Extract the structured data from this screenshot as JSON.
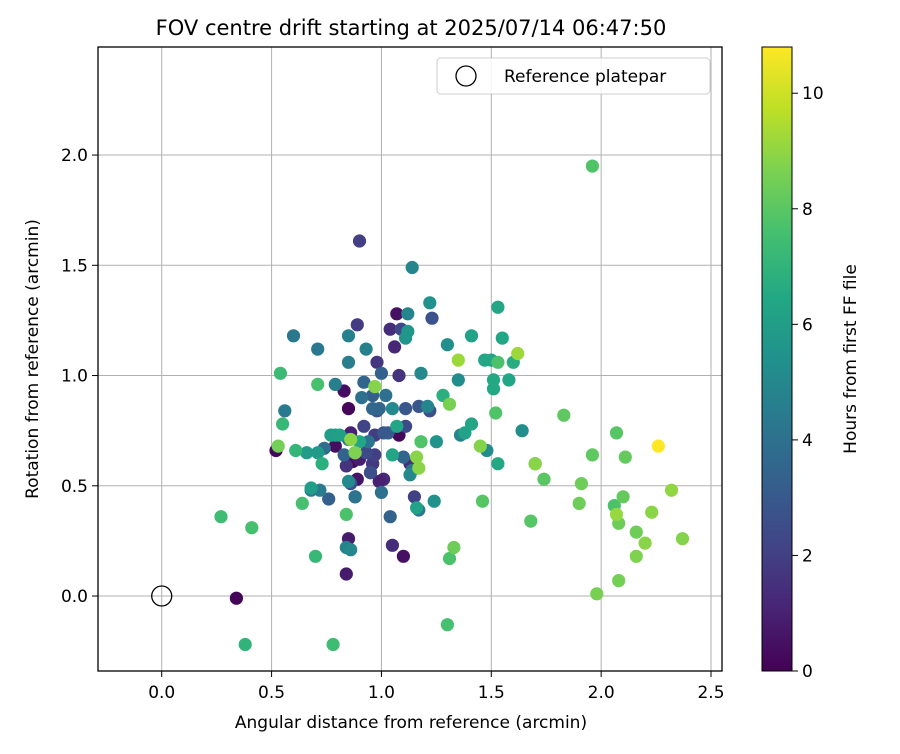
{
  "chart_data": {
    "type": "scatter",
    "title": "FOV centre drift starting at 2025/07/14 06:47:50",
    "xlabel": "Angular distance from reference (arcmin)",
    "ylabel": "Rotation from reference (arcmin)",
    "xlim": [
      -0.29,
      2.55
    ],
    "ylim": [
      -0.34,
      2.49
    ],
    "xticks": [
      0.0,
      0.5,
      1.0,
      1.5,
      2.0,
      2.5
    ],
    "xtick_labels": [
      "0.0",
      "0.5",
      "1.0",
      "1.5",
      "2.0",
      "2.5"
    ],
    "yticks": [
      0.0,
      0.5,
      1.0,
      1.5,
      2.0
    ],
    "ytick_labels": [
      "0.0",
      "0.5",
      "1.0",
      "1.5",
      "2.0"
    ],
    "grid": true,
    "legend": {
      "placement": "top-right",
      "entries": [
        {
          "label": "Reference platepar",
          "marker": "open-circle",
          "color": "#000000"
        }
      ]
    },
    "reference_point": {
      "x": 0.0,
      "y": 0.0
    },
    "colorbar": {
      "label": "Hours from first FF file",
      "colormap": "viridis",
      "range": [
        0,
        10.8
      ],
      "ticks": [
        0,
        2,
        4,
        6,
        8,
        10
      ],
      "tick_labels": [
        "0",
        "2",
        "4",
        "6",
        "8",
        "10"
      ]
    },
    "series": [
      {
        "points": [
          [
            0.34,
            -0.01,
            0.1
          ],
          [
            0.52,
            0.66,
            0.2
          ],
          [
            0.85,
            0.85,
            0.2
          ],
          [
            0.83,
            0.93,
            0.4
          ],
          [
            0.79,
            0.68,
            0.4
          ],
          [
            0.87,
            0.61,
            0.3
          ],
          [
            0.88,
            0.63,
            0.5
          ],
          [
            0.96,
            0.6,
            0.4
          ],
          [
            1.07,
            1.28,
            0.5
          ],
          [
            1.08,
            0.73,
            0.2
          ],
          [
            1.1,
            0.18,
            0.5
          ],
          [
            0.84,
            0.1,
            0.8
          ],
          [
            0.85,
            0.26,
            0.8
          ],
          [
            0.89,
            0.53,
            0.6
          ],
          [
            0.9,
            0.62,
            0.9
          ],
          [
            0.86,
            0.74,
            1.0
          ],
          [
            0.95,
            0.56,
            1.2
          ],
          [
            1.01,
            0.53,
            1.2
          ],
          [
            0.99,
            0.52,
            1.0
          ],
          [
            1.05,
            0.23,
            1.4
          ],
          [
            1.06,
            1.13,
            1.2
          ],
          [
            1.04,
            1.21,
            1.4
          ],
          [
            1.13,
            0.6,
            1.5
          ],
          [
            1.08,
            1.0,
            1.6
          ],
          [
            0.84,
            0.59,
            1.6
          ],
          [
            0.97,
            0.73,
            1.9
          ],
          [
            0.96,
            0.6,
            1.8
          ],
          [
            0.98,
            1.06,
            1.7
          ],
          [
            0.89,
            1.23,
            1.9
          ],
          [
            0.9,
            1.61,
            2.0
          ],
          [
            0.97,
            0.64,
            2.0
          ],
          [
            0.92,
            0.77,
            2.2
          ],
          [
            1.09,
            1.21,
            2.3
          ],
          [
            1.11,
            0.77,
            2.4
          ],
          [
            1.15,
            0.45,
            2.1
          ],
          [
            1.22,
            0.84,
            2.6
          ],
          [
            1.23,
            1.26,
            2.7
          ],
          [
            0.86,
            0.51,
            2.7
          ],
          [
            0.93,
            0.65,
            2.4
          ],
          [
            0.95,
            0.56,
            2.6
          ],
          [
            0.98,
            0.84,
            2.8
          ],
          [
            1.01,
            0.74,
            2.9
          ],
          [
            1.03,
            0.74,
            3.0
          ],
          [
            1.11,
            0.85,
            2.9
          ],
          [
            1.17,
            0.86,
            2.9
          ],
          [
            0.88,
            0.45,
            3.1
          ],
          [
            0.76,
            0.44,
            3.3
          ],
          [
            0.83,
            0.64,
            3.4
          ],
          [
            0.92,
            0.97,
            3.5
          ],
          [
            0.96,
            0.91,
            3.2
          ],
          [
            1.0,
            1.01,
            3.3
          ],
          [
            1.04,
            0.36,
            3.4
          ],
          [
            1.1,
            0.63,
            3.5
          ],
          [
            0.96,
            0.85,
            3.6
          ],
          [
            0.99,
            0.85,
            3.6
          ],
          [
            0.74,
            0.67,
            3.9
          ],
          [
            0.85,
            0.71,
            4.0
          ],
          [
            0.88,
            0.45,
            4.1
          ],
          [
            0.91,
            0.9,
            4.0
          ],
          [
            0.94,
            0.7,
            4.1
          ],
          [
            1.0,
            0.47,
            4.0
          ],
          [
            1.02,
            0.91,
            4.0
          ],
          [
            1.14,
            0.57,
            4.2
          ],
          [
            1.17,
            0.39,
            4.2
          ],
          [
            0.71,
            1.12,
            4.3
          ],
          [
            0.6,
            1.18,
            4.3
          ],
          [
            0.56,
            0.84,
            4.4
          ],
          [
            0.68,
            0.48,
            4.5
          ],
          [
            0.72,
            0.48,
            4.5
          ],
          [
            0.79,
            0.96,
            4.6
          ],
          [
            0.85,
            1.06,
            4.6
          ],
          [
            0.85,
            1.18,
            4.7
          ],
          [
            0.93,
            1.12,
            4.7
          ],
          [
            1.14,
            1.49,
            4.9
          ],
          [
            1.12,
            1.28,
            4.9
          ],
          [
            1.18,
            1.01,
            5.0
          ],
          [
            1.05,
            0.85,
            5.0
          ],
          [
            1.13,
            0.55,
            5.0
          ],
          [
            1.21,
            0.86,
            4.9
          ],
          [
            1.24,
            0.43,
            5.4
          ],
          [
            0.84,
            0.22,
            4.8
          ],
          [
            0.86,
            0.21,
            5.0
          ],
          [
            0.85,
            0.52,
            5.1
          ],
          [
            0.88,
            0.65,
            5.0
          ],
          [
            1.36,
            0.73,
            4.9
          ],
          [
            1.35,
            0.98,
            5.2
          ],
          [
            1.3,
            1.14,
            5.3
          ],
          [
            1.48,
            0.66,
            5.2
          ],
          [
            1.64,
            0.75,
            5.3
          ],
          [
            1.7,
            0.6,
            5.4
          ],
          [
            1.22,
            1.33,
            5.4
          ],
          [
            1.25,
            0.7,
            5.6
          ],
          [
            1.11,
            1.17,
            5.6
          ],
          [
            1.12,
            1.2,
            5.7
          ],
          [
            0.71,
            0.65,
            5.8
          ],
          [
            0.66,
            0.65,
            5.9
          ],
          [
            0.68,
            0.49,
            6.0
          ],
          [
            0.79,
            0.73,
            6.0
          ],
          [
            0.77,
            0.73,
            6.0
          ],
          [
            0.81,
            0.73,
            6.1
          ],
          [
            0.9,
            0.7,
            6.4
          ],
          [
            1.07,
            0.77,
            6.4
          ],
          [
            1.05,
            0.64,
            6.3
          ],
          [
            1.16,
            0.4,
            6.2
          ],
          [
            1.41,
            1.18,
            6.2
          ],
          [
            1.38,
            0.74,
            6.2
          ],
          [
            1.41,
            0.78,
            6.3
          ],
          [
            1.47,
            1.07,
            6.4
          ],
          [
            1.5,
            1.07,
            6.4
          ],
          [
            1.53,
            1.31,
            6.4
          ],
          [
            1.55,
            1.17,
            6.4
          ],
          [
            1.58,
            0.98,
            6.4
          ],
          [
            1.51,
            0.94,
            6.5
          ],
          [
            1.51,
            0.98,
            6.5
          ],
          [
            1.53,
            0.6,
            6.5
          ],
          [
            1.6,
            1.06,
            6.7
          ],
          [
            1.28,
            0.91,
            6.8
          ],
          [
            0.73,
            0.6,
            6.8
          ],
          [
            0.61,
            0.66,
            7.1
          ],
          [
            0.38,
            -0.22,
            7.0
          ],
          [
            0.7,
            0.18,
            7.2
          ],
          [
            0.55,
            0.78,
            7.2
          ],
          [
            0.54,
            1.01,
            7.3
          ],
          [
            0.27,
            0.36,
            7.4
          ],
          [
            0.78,
            -0.22,
            7.4
          ],
          [
            0.41,
            0.31,
            7.6
          ],
          [
            0.64,
            0.42,
            7.6
          ],
          [
            0.71,
            0.96,
            7.6
          ],
          [
            0.84,
            0.37,
            7.7
          ],
          [
            1.18,
            0.7,
            7.8
          ],
          [
            1.3,
            -0.13,
            7.6
          ],
          [
            1.31,
            0.17,
            7.7
          ],
          [
            1.53,
            1.06,
            7.7
          ],
          [
            1.52,
            0.83,
            7.8
          ],
          [
            1.46,
            0.43,
            7.9
          ],
          [
            1.68,
            0.34,
            7.9
          ],
          [
            1.74,
            0.53,
            8.0
          ],
          [
            1.83,
            0.82,
            8.1
          ],
          [
            1.9,
            0.42,
            8.4
          ],
          [
            1.91,
            0.51,
            8.4
          ],
          [
            1.96,
            0.64,
            8.1
          ],
          [
            1.96,
            1.95,
            7.8
          ],
          [
            2.07,
            0.74,
            7.9
          ],
          [
            2.06,
            0.41,
            7.7
          ],
          [
            2.08,
            0.33,
            8.4
          ],
          [
            2.1,
            0.45,
            8.2
          ],
          [
            2.11,
            0.63,
            8.2
          ],
          [
            2.16,
            0.29,
            8.4
          ],
          [
            2.16,
            0.18,
            8.7
          ],
          [
            2.2,
            0.24,
            8.9
          ],
          [
            2.23,
            0.38,
            8.9
          ],
          [
            2.32,
            0.48,
            9.0
          ],
          [
            2.37,
            0.26,
            8.8
          ],
          [
            2.08,
            0.07,
            8.5
          ],
          [
            1.98,
            0.01,
            8.6
          ],
          [
            2.07,
            0.37,
            9.1
          ],
          [
            1.35,
            1.07,
            9.2
          ],
          [
            1.62,
            1.1,
            9.2
          ],
          [
            1.33,
            0.22,
            8.4
          ],
          [
            1.31,
            0.87,
            8.6
          ],
          [
            1.45,
            0.68,
            8.8
          ],
          [
            1.7,
            0.6,
            8.9
          ],
          [
            1.17,
            0.58,
            8.9
          ],
          [
            1.16,
            0.63,
            8.9
          ],
          [
            0.86,
            0.71,
            8.9
          ],
          [
            0.53,
            0.68,
            8.5
          ],
          [
            0.88,
            0.65,
            8.7
          ],
          [
            0.97,
            0.95,
            8.8
          ],
          [
            2.26,
            0.68,
            10.8
          ]
        ]
      }
    ]
  }
}
